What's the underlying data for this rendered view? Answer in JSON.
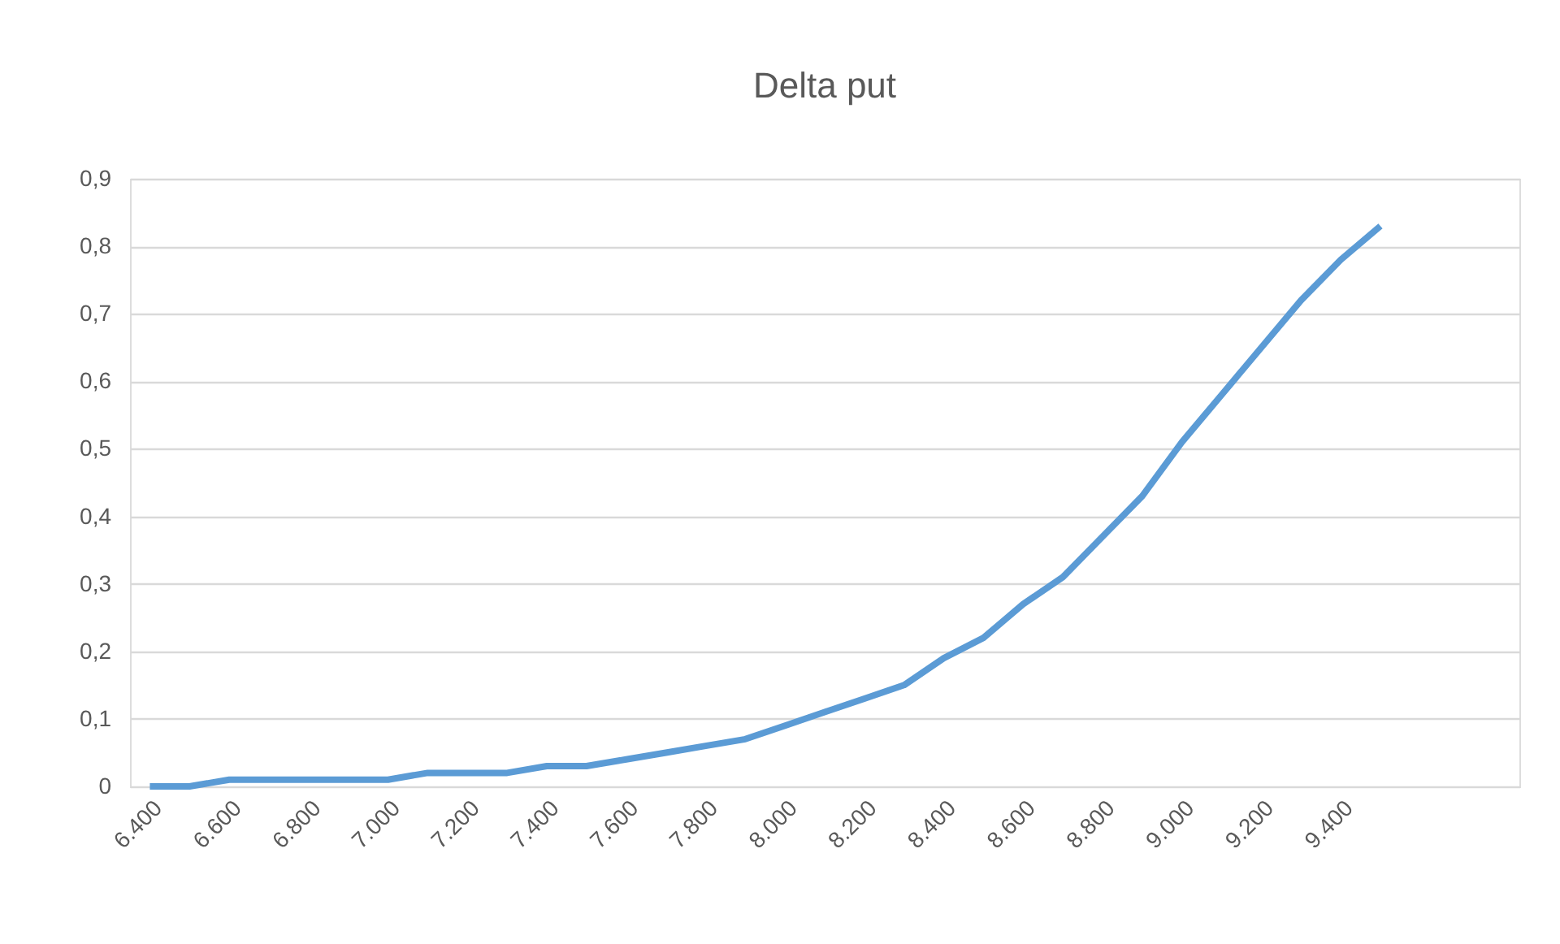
{
  "chart_data": {
    "type": "line",
    "title": "Delta put",
    "categories": [
      "6.400",
      null,
      "6.600",
      null,
      "6.800",
      null,
      "7.000",
      null,
      "7.200",
      null,
      "7.400",
      null,
      "7.600",
      null,
      "7.800",
      null,
      "8.000",
      null,
      "8.200",
      null,
      "8.400",
      null,
      "8.600",
      null,
      "8.800",
      null,
      "9.000",
      null,
      "9.200",
      null,
      "9.400",
      null,
      null,
      null,
      null
    ],
    "series": [
      {
        "color": "#5b9bd5",
        "values": [
          0,
          0,
          0.01,
          0.01,
          0.01,
          0.01,
          0.01,
          0.02,
          0.02,
          0.02,
          0.03,
          0.03,
          0.04,
          0.05,
          0.06,
          0.07,
          0.09,
          0.11,
          0.13,
          0.15,
          0.19,
          0.22,
          0.27,
          0.31,
          0.37,
          0.43,
          0.51,
          0.58,
          0.65,
          0.72,
          0.78,
          0.83,
          null,
          null,
          null
        ]
      }
    ],
    "ylim": [
      0,
      0.9
    ],
    "yticks": [
      {
        "value": 0,
        "label": "0"
      },
      {
        "value": 0.1,
        "label": "0,1"
      },
      {
        "value": 0.2,
        "label": "0,2"
      },
      {
        "value": 0.3,
        "label": "0,3"
      },
      {
        "value": 0.4,
        "label": "0,4"
      },
      {
        "value": 0.5,
        "label": "0,5"
      },
      {
        "value": 0.6,
        "label": "0,6"
      },
      {
        "value": 0.7,
        "label": "0,7"
      },
      {
        "value": 0.8,
        "label": "0,8"
      },
      {
        "value": 0.9,
        "label": "0,9"
      }
    ],
    "grid": "y",
    "legend": false,
    "marker": "none",
    "line_style": "solid"
  }
}
